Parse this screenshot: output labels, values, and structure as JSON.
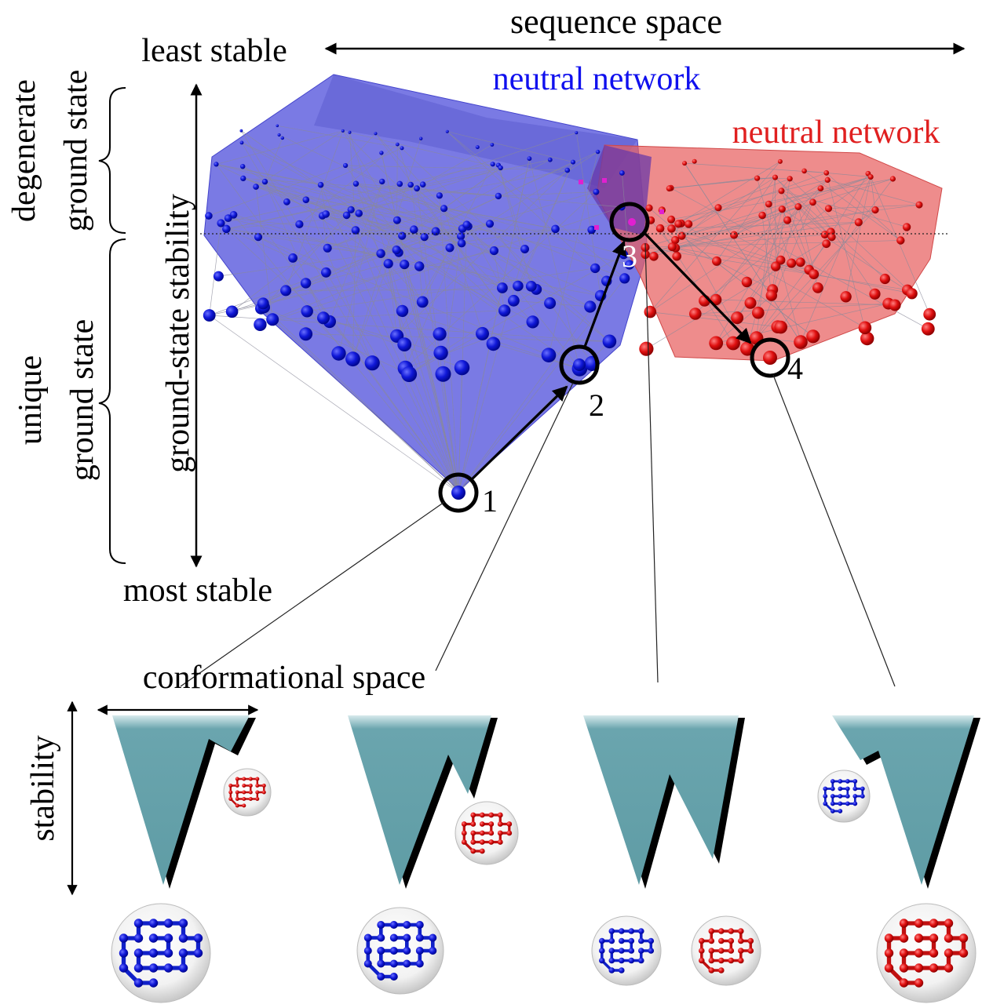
{
  "labels": {
    "sequence_space": "sequence space",
    "least_stable": "least stable",
    "most_stable": "most stable",
    "degenerate": "degenerate",
    "ground_state_1": "ground state",
    "unique": "unique",
    "ground_state_2": "ground state",
    "ground_state_stability": "ground-state stability",
    "neutral_network_blue": "neutral network",
    "neutral_network_red": "neutral network",
    "conformational_space": "conformational space",
    "stability": "stability"
  },
  "path_points": [
    {
      "label": "1"
    },
    {
      "label": "2"
    },
    {
      "label": "3"
    },
    {
      "label": "4"
    }
  ],
  "colors": {
    "blue_network": "#5555dd",
    "red_network": "#e86060",
    "funnel": "#6aa5ae",
    "blue_node": "#0a10c8",
    "red_node": "#d01010",
    "magenta_node": "#e020d0"
  },
  "icons": [
    "blue-protein-icon",
    "red-protein-icon"
  ]
}
